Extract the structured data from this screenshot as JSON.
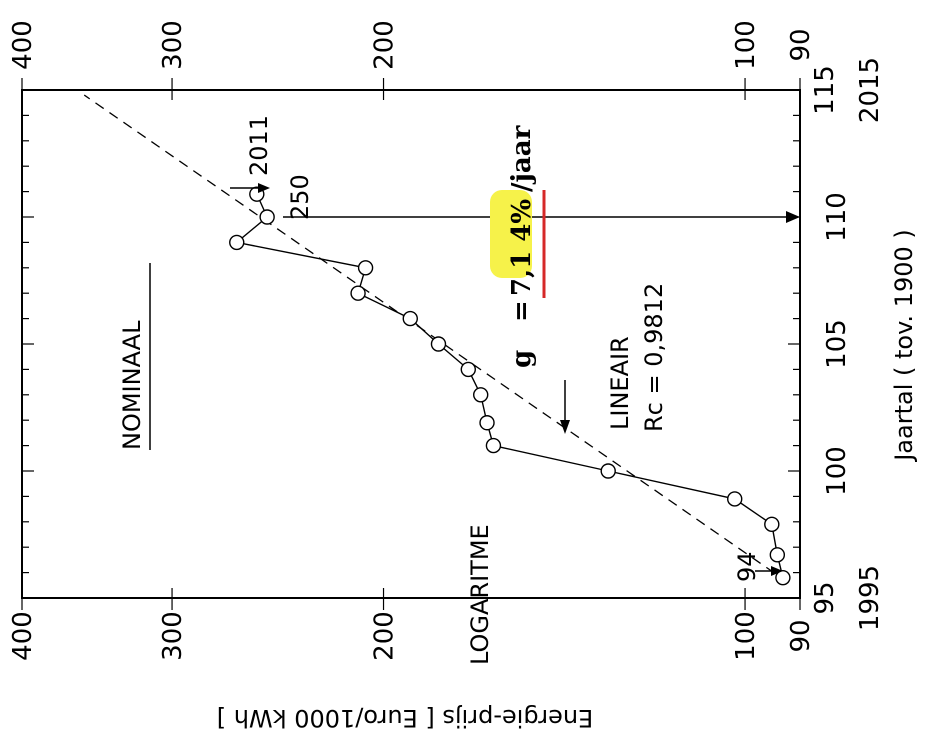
{
  "chart_data": {
    "type": "line",
    "orientation": "rotated 90 degrees counter-clockwise",
    "xlabel": "Jaartal ( tov. 1900 )",
    "ylabel": "Energie-prijs [ Euro/1000 kWh ]",
    "xlim": [
      95,
      115
    ],
    "ylim": [
      90,
      400
    ],
    "yscale": "log",
    "x_ticks": [
      "95",
      "100",
      "105",
      "110",
      "115"
    ],
    "x_year_labels": [
      "1995",
      "2015"
    ],
    "y_ticks": [
      "90",
      "100",
      "200",
      "300",
      "400"
    ],
    "series": [
      {
        "x": [
          95.8,
          96.7,
          97.9,
          98.9,
          100.0,
          101.0,
          101.9,
          103.0,
          104.0,
          105.0,
          106.0,
          107.0,
          108.0,
          109.0,
          110.0,
          110.9
        ],
        "y": [
          93,
          94,
          95,
          102,
          130,
          162,
          164,
          166,
          170,
          180,
          190,
          210,
          207,
          265,
          250,
          255
        ]
      }
    ],
    "trendline": {
      "style": "dashed",
      "x": [
        95.6,
        114.8
      ],
      "y": [
        92,
        355
      ]
    },
    "annotations": {
      "method_label": "NOMINAAL",
      "scale_label": "LOGARITME",
      "fit_label": "LINEAIR",
      "rc_text": "Rc = 0,9812",
      "growth_prefix": "g",
      "growth_eq": "=",
      "growth_value": "7,1 4%",
      "growth_unit": "/jaar",
      "label_94": "94",
      "label_2011": "2011",
      "label_250": "250",
      "highlight_color": "#f6f24a",
      "underline_color": "#d62828"
    }
  }
}
